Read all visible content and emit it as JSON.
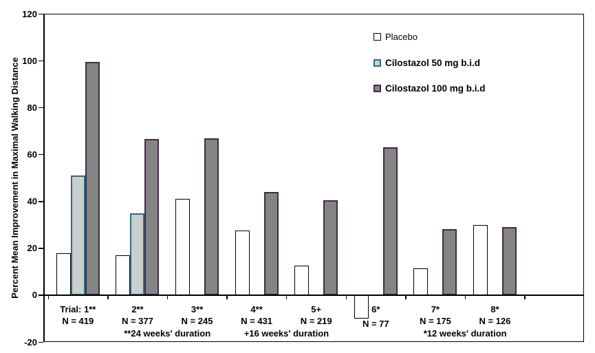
{
  "chart_data": {
    "type": "bar",
    "title": "",
    "xlabel": "",
    "ylabel": "Percent Mean Improvement in Maximal Walking Distance",
    "ylim": [
      -20,
      120
    ],
    "yticks": [
      120,
      100,
      80,
      60,
      40,
      20,
      0,
      -20
    ],
    "grid": false,
    "legend_position": "top-right",
    "axis_color": "#000000",
    "categories": [
      "Trial: 1**",
      "2**",
      "3**",
      "4**",
      "5+",
      "6*",
      "7*",
      "8*"
    ],
    "n_labels": [
      "N = 419",
      "N = 377",
      "N = 245",
      "N = 431",
      "N = 219",
      "N = 77",
      "N = 175",
      "N = 126"
    ],
    "series": [
      {
        "slug": "placebo",
        "name": "Placebo",
        "values": [
          18,
          17,
          41,
          27.5,
          12.5,
          -10,
          11.5,
          30
        ],
        "fill": "#ffffff",
        "border": "#000000",
        "bold_legend": false
      },
      {
        "slug": "cilostazol-50",
        "name": "Cilostazol 50 mg b.i.d",
        "values": [
          51,
          35,
          null,
          null,
          null,
          null,
          null,
          null
        ],
        "fill": "#c9cecf",
        "border": "#2d6d80",
        "bold_legend": true
      },
      {
        "slug": "cilostazol-100",
        "name": "Cilostazol 100 mg b.i.d",
        "values": [
          99.5,
          66.5,
          67,
          44,
          40.5,
          63,
          28,
          29
        ],
        "fill": "#848484",
        "border": "#44294a",
        "bold_legend": true
      }
    ],
    "footnotes": [
      {
        "text": "**24 weeks' duration",
        "between": [
          1,
          2
        ]
      },
      {
        "text": "+16 weeks' duration",
        "between": [
          3,
          4
        ]
      },
      {
        "text": "*12 weeks' duration",
        "between": [
          6,
          7
        ]
      }
    ]
  }
}
